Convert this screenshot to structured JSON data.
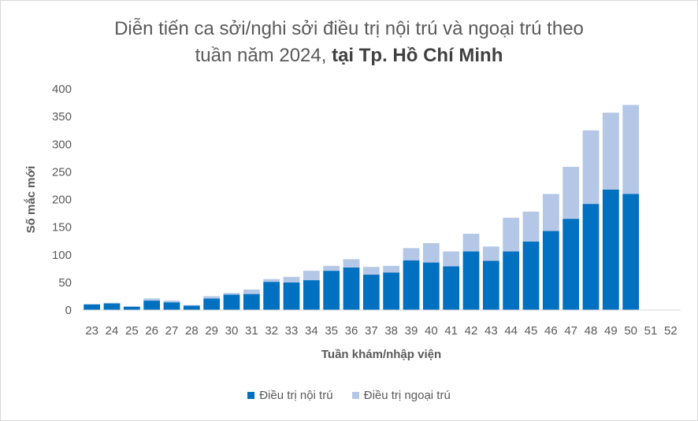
{
  "chart_data": {
    "type": "bar",
    "stacked": true,
    "title_line1": "Diễn tiến ca sởi/nghi sởi điều trị nội trú và ngoại trú theo",
    "title_line2_plain": "tuần năm 2024, ",
    "title_line2_bold": "tại Tp. Hồ Chí Minh",
    "xlabel": "Tuần khám/nhập viện",
    "ylabel": "Số mắc mới",
    "ylim": [
      0,
      400
    ],
    "yticks": [
      0,
      50,
      100,
      150,
      200,
      250,
      300,
      350,
      400
    ],
    "grid": false,
    "legend_position": "bottom",
    "categories": [
      "23",
      "24",
      "25",
      "26",
      "27",
      "28",
      "29",
      "30",
      "31",
      "32",
      "33",
      "34",
      "35",
      "36",
      "37",
      "38",
      "39",
      "40",
      "41",
      "42",
      "43",
      "44",
      "45",
      "46",
      "47",
      "48",
      "49",
      "50",
      "51",
      "52"
    ],
    "series": [
      {
        "name": "Điều trị nội trú",
        "color": "#0070c0",
        "values": [
          10,
          12,
          6,
          17,
          14,
          8,
          21,
          28,
          29,
          51,
          50,
          54,
          71,
          77,
          64,
          68,
          90,
          86,
          79,
          106,
          89,
          106,
          124,
          143,
          165,
          192,
          218,
          210,
          0,
          0
        ]
      },
      {
        "name": "Điều trị ngoại trú",
        "color": "#b4c7e7",
        "values": [
          1,
          1,
          1,
          4,
          3,
          1,
          4,
          3,
          8,
          5,
          10,
          17,
          9,
          15,
          14,
          12,
          22,
          35,
          27,
          32,
          26,
          61,
          54,
          67,
          94,
          133,
          139,
          161,
          0,
          0
        ]
      }
    ]
  }
}
